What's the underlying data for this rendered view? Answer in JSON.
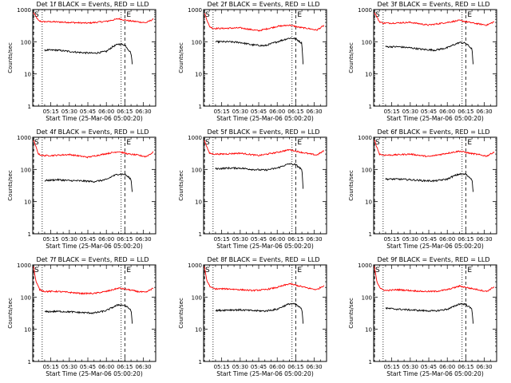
{
  "page": {
    "title_prefix": "Det",
    "title_suffix": "BLACK = Events, RED = LLD",
    "ylabel": "Counts/sec",
    "xlabel": "Start Time (25-Mar-06 05:00:20)",
    "colors": {
      "events": "#000000",
      "lld": "#ff0000",
      "axes": "#000000",
      "background": "#ffffff"
    }
  },
  "chart_data": [
    {
      "type": "line",
      "title": "Det 1f BLACK = Events, RED = LLD",
      "ylabel": "Counts/sec",
      "xlabel": "Start Time (25-Mar-06 05:00:20)",
      "yscale": "log",
      "ylim": [
        1,
        1000
      ],
      "yticks": [
        "1",
        "10",
        "100",
        "1000"
      ],
      "xticks": [
        "05:15",
        "05:30",
        "05:45",
        "06:00",
        "06:15",
        "06:30"
      ],
      "markers": {
        "S": "05:01",
        "E": "06:15"
      },
      "dotted_lines": [
        "05:08",
        "06:12"
      ],
      "series": [
        {
          "name": "LLD",
          "color": "#ff0000",
          "x": [
            "05:01",
            "05:05",
            "05:08",
            "05:15",
            "05:30",
            "05:45",
            "06:00",
            "06:10",
            "06:18",
            "06:25",
            "06:32",
            "06:38"
          ],
          "y": [
            800,
            450,
            420,
            420,
            400,
            380,
            430,
            520,
            450,
            420,
            390,
            500
          ]
        },
        {
          "name": "Events",
          "color": "#000000",
          "x": [
            "05:10",
            "05:20",
            "05:30",
            "05:40",
            "05:50",
            "06:00",
            "06:05",
            "06:10",
            "06:15",
            "06:20",
            "06:21"
          ],
          "y": [
            55,
            55,
            50,
            46,
            44,
            50,
            70,
            85,
            80,
            45,
            20
          ]
        }
      ]
    },
    {
      "type": "line",
      "title": "Det 2f BLACK = Events, RED = LLD",
      "ylabel": "Counts/sec",
      "xlabel": "Start Time (25-Mar-06 05:00:20)",
      "yscale": "log",
      "ylim": [
        1,
        1000
      ],
      "yticks": [
        "1",
        "10",
        "100",
        "1000"
      ],
      "xticks": [
        "05:15",
        "05:30",
        "05:45",
        "06:00",
        "06:15",
        "06:30"
      ],
      "markers": {
        "S": "05:01",
        "E": "06:15"
      },
      "dotted_lines": [
        "05:08",
        "06:12"
      ],
      "series": [
        {
          "name": "LLD",
          "color": "#ff0000",
          "x": [
            "05:01",
            "05:05",
            "05:08",
            "05:15",
            "05:30",
            "05:45",
            "06:00",
            "06:10",
            "06:18",
            "06:25",
            "06:32",
            "06:38"
          ],
          "y": [
            800,
            300,
            260,
            260,
            270,
            220,
            300,
            330,
            280,
            260,
            230,
            320
          ]
        },
        {
          "name": "Events",
          "color": "#000000",
          "x": [
            "05:10",
            "05:20",
            "05:30",
            "05:40",
            "05:50",
            "06:00",
            "06:05",
            "06:10",
            "06:15",
            "06:20",
            "06:21"
          ],
          "y": [
            100,
            100,
            95,
            80,
            75,
            100,
            115,
            130,
            125,
            90,
            20
          ]
        }
      ]
    },
    {
      "type": "line",
      "title": "Det 3f BLACK = Events, RED = LLD",
      "ylabel": "Counts/sec",
      "xlabel": "Start Time (25-Mar-06 05:00:20)",
      "yscale": "log",
      "ylim": [
        1,
        1000
      ],
      "yticks": [
        "1",
        "10",
        "100",
        "1000"
      ],
      "xticks": [
        "05:15",
        "05:30",
        "05:45",
        "06:00",
        "06:15",
        "06:30"
      ],
      "markers": {
        "S": "05:01",
        "E": "06:15"
      },
      "dotted_lines": [
        "05:08",
        "06:12"
      ],
      "series": [
        {
          "name": "LLD",
          "color": "#ff0000",
          "x": [
            "05:01",
            "05:05",
            "05:08",
            "05:15",
            "05:30",
            "05:45",
            "06:00",
            "06:10",
            "06:18",
            "06:25",
            "06:32",
            "06:38"
          ],
          "y": [
            800,
            420,
            380,
            380,
            400,
            330,
            400,
            460,
            400,
            360,
            330,
            420
          ]
        },
        {
          "name": "Events",
          "color": "#000000",
          "x": [
            "05:10",
            "05:20",
            "05:30",
            "05:40",
            "05:50",
            "06:00",
            "06:05",
            "06:10",
            "06:15",
            "06:20",
            "06:21"
          ],
          "y": [
            70,
            70,
            65,
            58,
            55,
            65,
            80,
            95,
            90,
            60,
            20
          ]
        }
      ]
    },
    {
      "type": "line",
      "title": "Det 4f BLACK = Events, RED = LLD",
      "ylabel": "Counts/sec",
      "xlabel": "Start Time (25-Mar-06 05:00:20)",
      "yscale": "log",
      "ylim": [
        1,
        1000
      ],
      "yticks": [
        "1",
        "10",
        "100",
        "1000"
      ],
      "xticks": [
        "05:15",
        "05:30",
        "05:45",
        "06:00",
        "06:15",
        "06:30"
      ],
      "markers": {
        "S": "05:01",
        "E": "06:15"
      },
      "dotted_lines": [
        "05:08",
        "06:12"
      ],
      "series": [
        {
          "name": "LLD",
          "color": "#ff0000",
          "x": [
            "05:01",
            "05:05",
            "05:08",
            "05:15",
            "05:30",
            "05:45",
            "06:00",
            "06:10",
            "06:18",
            "06:25",
            "06:32",
            "06:38"
          ],
          "y": [
            800,
            300,
            270,
            270,
            290,
            240,
            310,
            360,
            300,
            280,
            250,
            340
          ]
        },
        {
          "name": "Events",
          "color": "#000000",
          "x": [
            "05:10",
            "05:20",
            "05:30",
            "05:40",
            "05:50",
            "06:00",
            "06:05",
            "06:10",
            "06:15",
            "06:20",
            "06:21"
          ],
          "y": [
            45,
            48,
            45,
            44,
            42,
            48,
            62,
            72,
            70,
            50,
            20
          ]
        }
      ]
    },
    {
      "type": "line",
      "title": "Det 5f BLACK = Events, RED = LLD",
      "ylabel": "Counts/sec",
      "xlabel": "Start Time (25-Mar-06 05:00:20)",
      "yscale": "log",
      "ylim": [
        1,
        1000
      ],
      "yticks": [
        "1",
        "10",
        "100",
        "1000"
      ],
      "xticks": [
        "05:15",
        "05:30",
        "05:45",
        "06:00",
        "06:15",
        "06:30"
      ],
      "markers": {
        "S": "05:01",
        "E": "06:15"
      },
      "dotted_lines": [
        "05:08",
        "06:12"
      ],
      "series": [
        {
          "name": "LLD",
          "color": "#ff0000",
          "x": [
            "05:01",
            "05:05",
            "05:08",
            "05:15",
            "05:30",
            "05:45",
            "06:00",
            "06:10",
            "06:18",
            "06:25",
            "06:32",
            "06:38"
          ],
          "y": [
            800,
            320,
            300,
            300,
            320,
            270,
            340,
            410,
            350,
            310,
            280,
            380
          ]
        },
        {
          "name": "Events",
          "color": "#000000",
          "x": [
            "05:10",
            "05:20",
            "05:30",
            "05:40",
            "05:50",
            "06:00",
            "06:05",
            "06:10",
            "06:15",
            "06:20",
            "06:21"
          ],
          "y": [
            105,
            110,
            110,
            100,
            95,
            110,
            130,
            150,
            140,
            100,
            25
          ]
        }
      ]
    },
    {
      "type": "line",
      "title": "Det 6f BLACK = Events, RED = LLD",
      "ylabel": "Counts/sec",
      "xlabel": "Start Time (25-Mar-06 05:00:20)",
      "yscale": "log",
      "ylim": [
        1,
        1000
      ],
      "yticks": [
        "1",
        "10",
        "100",
        "1000"
      ],
      "xticks": [
        "05:15",
        "05:30",
        "05:45",
        "06:00",
        "06:15",
        "06:30"
      ],
      "markers": {
        "S": "05:01",
        "E": "06:15"
      },
      "dotted_lines": [
        "05:08",
        "06:12"
      ],
      "series": [
        {
          "name": "LLD",
          "color": "#ff0000",
          "x": [
            "05:01",
            "05:05",
            "05:08",
            "05:15",
            "05:30",
            "05:45",
            "06:00",
            "06:10",
            "06:18",
            "06:25",
            "06:32",
            "06:38"
          ],
          "y": [
            800,
            300,
            280,
            280,
            300,
            250,
            320,
            370,
            320,
            290,
            260,
            350
          ]
        },
        {
          "name": "Events",
          "color": "#000000",
          "x": [
            "05:10",
            "05:20",
            "05:30",
            "05:40",
            "05:50",
            "06:00",
            "06:05",
            "06:10",
            "06:15",
            "06:20",
            "06:21"
          ],
          "y": [
            50,
            50,
            48,
            45,
            44,
            50,
            62,
            72,
            70,
            50,
            20
          ]
        }
      ]
    },
    {
      "type": "line",
      "title": "Det 7f BLACK = Events, RED = LLD",
      "ylabel": "Counts/sec",
      "xlabel": "Start Time (25-Mar-06 05:00:20)",
      "yscale": "log",
      "ylim": [
        1,
        1000
      ],
      "yticks": [
        "1",
        "10",
        "100",
        "1000"
      ],
      "xticks": [
        "05:15",
        "05:30",
        "05:45",
        "06:00",
        "06:15",
        "06:30"
      ],
      "markers": {
        "S": "05:01",
        "E": "06:15"
      },
      "dotted_lines": [
        "05:08",
        "06:12"
      ],
      "series": [
        {
          "name": "LLD",
          "color": "#ff0000",
          "x": [
            "05:01",
            "05:03",
            "05:06",
            "05:10",
            "05:20",
            "05:30",
            "05:40",
            "05:50",
            "06:00",
            "06:10",
            "06:18",
            "06:25",
            "06:32",
            "06:38"
          ],
          "y": [
            900,
            300,
            170,
            150,
            150,
            140,
            130,
            130,
            150,
            190,
            170,
            150,
            140,
            190
          ]
        },
        {
          "name": "Events",
          "color": "#000000",
          "x": [
            "05:10",
            "05:20",
            "05:30",
            "05:40",
            "05:50",
            "06:00",
            "06:05",
            "06:10",
            "06:15",
            "06:20",
            "06:21"
          ],
          "y": [
            35,
            36,
            35,
            33,
            32,
            38,
            48,
            58,
            55,
            40,
            15
          ]
        }
      ]
    },
    {
      "type": "line",
      "title": "Det 8f BLACK = Events, RED = LLD",
      "ylabel": "Counts/sec",
      "xlabel": "Start Time (25-Mar-06 05:00:20)",
      "yscale": "log",
      "ylim": [
        1,
        1000
      ],
      "yticks": [
        "1",
        "10",
        "100",
        "1000"
      ],
      "xticks": [
        "05:15",
        "05:30",
        "05:45",
        "06:00",
        "06:15",
        "06:30"
      ],
      "markers": {
        "S": "05:01",
        "E": "06:15"
      },
      "dotted_lines": [
        "05:08",
        "06:12"
      ],
      "series": [
        {
          "name": "LLD",
          "color": "#ff0000",
          "x": [
            "05:01",
            "05:03",
            "05:06",
            "05:10",
            "05:20",
            "05:30",
            "05:40",
            "05:50",
            "06:00",
            "06:10",
            "06:18",
            "06:25",
            "06:32",
            "06:38"
          ],
          "y": [
            900,
            320,
            200,
            180,
            180,
            170,
            160,
            170,
            200,
            260,
            220,
            190,
            170,
            230
          ]
        },
        {
          "name": "Events",
          "color": "#000000",
          "x": [
            "05:10",
            "05:20",
            "05:30",
            "05:40",
            "05:50",
            "06:00",
            "06:05",
            "06:10",
            "06:15",
            "06:20",
            "06:21"
          ],
          "y": [
            38,
            40,
            40,
            38,
            37,
            42,
            52,
            62,
            60,
            42,
            15
          ]
        }
      ]
    },
    {
      "type": "line",
      "title": "Det 9f BLACK = Events, RED = LLD",
      "ylabel": "Counts/sec",
      "xlabel": "Start Time (25-Mar-06 05:00:20)",
      "yscale": "log",
      "ylim": [
        1,
        1000
      ],
      "yticks": [
        "1",
        "10",
        "100",
        "1000"
      ],
      "xticks": [
        "05:15",
        "05:30",
        "05:45",
        "06:00",
        "06:15",
        "06:30"
      ],
      "markers": {
        "S": "05:01",
        "E": "06:15"
      },
      "dotted_lines": [
        "05:08",
        "06:12"
      ],
      "series": [
        {
          "name": "LLD",
          "color": "#ff0000",
          "x": [
            "05:01",
            "05:03",
            "05:06",
            "05:10",
            "05:20",
            "05:30",
            "05:40",
            "05:50",
            "06:00",
            "06:10",
            "06:18",
            "06:25",
            "06:32",
            "06:38"
          ],
          "y": [
            900,
            300,
            180,
            160,
            170,
            160,
            150,
            150,
            170,
            220,
            190,
            170,
            150,
            210
          ]
        },
        {
          "name": "Events",
          "color": "#000000",
          "x": [
            "05:10",
            "05:20",
            "05:30",
            "05:40",
            "05:50",
            "06:00",
            "06:05",
            "06:10",
            "06:15",
            "06:20",
            "06:21"
          ],
          "y": [
            45,
            42,
            40,
            38,
            37,
            42,
            50,
            62,
            60,
            42,
            15
          ]
        }
      ]
    }
  ]
}
